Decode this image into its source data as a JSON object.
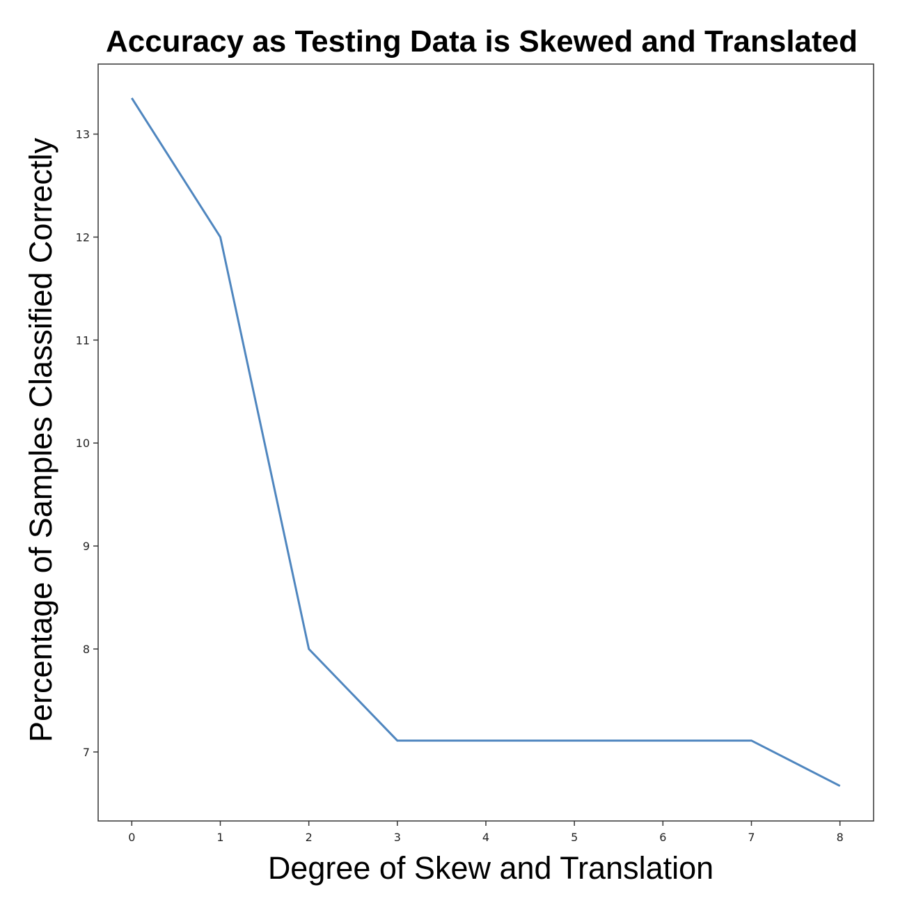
{
  "chart_data": {
    "type": "line",
    "title": "Accuracy as Testing Data is Skewed and Translated",
    "xlabel": "Degree of Skew and Translation",
    "ylabel": "Percentage of Samples Classified Correctly",
    "x": [
      0,
      1,
      2,
      3,
      4,
      5,
      6,
      7,
      8
    ],
    "series": [
      {
        "values": [
          13.35,
          12.0,
          8.0,
          7.11,
          7.11,
          7.11,
          7.11,
          7.11,
          6.67
        ],
        "color": "#4f86bf"
      }
    ],
    "xticks": [
      "0",
      "1",
      "2",
      "3",
      "4",
      "5",
      "6",
      "7",
      "8"
    ],
    "yticks": [
      "7",
      "8",
      "9",
      "10",
      "11",
      "12",
      "13"
    ],
    "xlim": [
      -0.38,
      8.38
    ],
    "ylim": [
      6.33,
      13.68
    ],
    "grid": false,
    "legend": "none"
  }
}
